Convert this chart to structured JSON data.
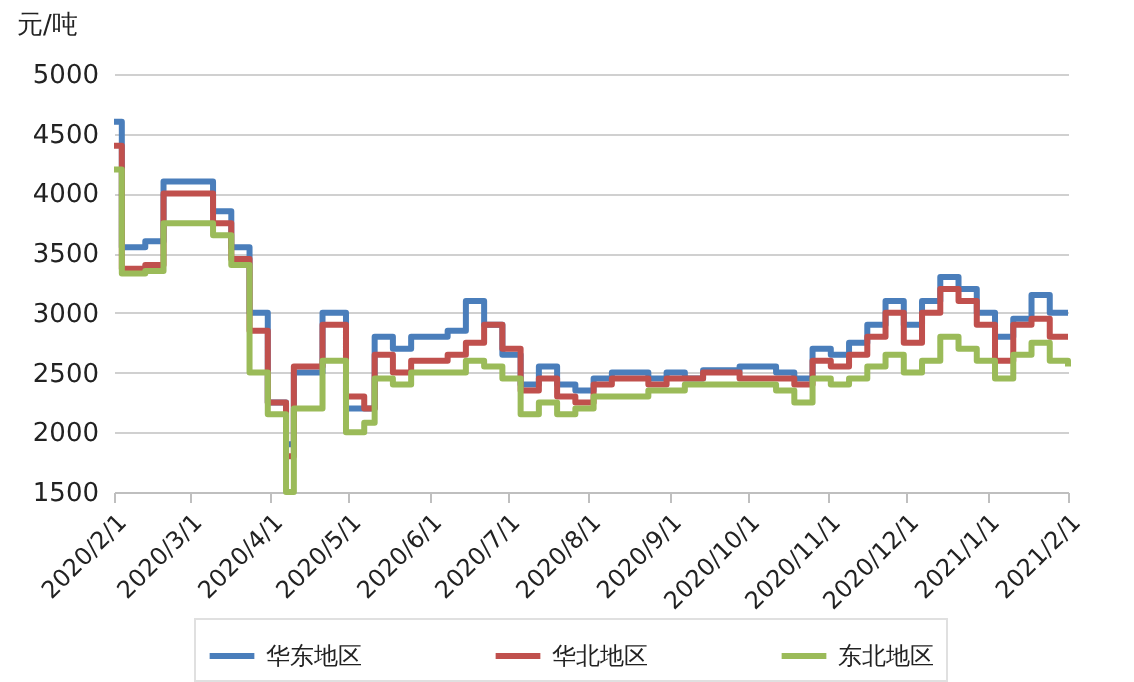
{
  "chart_data": {
    "type": "step",
    "ylabel": "元/吨",
    "x": [
      "2020-02-01",
      "2020-02-04",
      "2020-02-13",
      "2020-02-20",
      "2020-03-10",
      "2020-03-17",
      "2020-03-24",
      "2020-03-31",
      "2020-04-07",
      "2020-04-10",
      "2020-04-17",
      "2020-04-21",
      "2020-04-30",
      "2020-05-07",
      "2020-05-11",
      "2020-05-18",
      "2020-05-25",
      "2020-06-08",
      "2020-06-15",
      "2020-06-22",
      "2020-06-29",
      "2020-07-06",
      "2020-07-13",
      "2020-07-20",
      "2020-07-27",
      "2020-08-03",
      "2020-08-10",
      "2020-08-24",
      "2020-08-31",
      "2020-09-07",
      "2020-09-14",
      "2020-09-28",
      "2020-10-12",
      "2020-10-19",
      "2020-10-26",
      "2020-11-02",
      "2020-11-09",
      "2020-11-16",
      "2020-11-23",
      "2020-11-30",
      "2020-12-07",
      "2020-12-14",
      "2020-12-21",
      "2020-12-28",
      "2021-01-04",
      "2021-01-11",
      "2021-01-18",
      "2021-01-25",
      "2021-02-01"
    ],
    "series": [
      {
        "name": "华东地区",
        "color": "#4a7ebb",
        "values": [
          4600,
          3550,
          3600,
          4100,
          3850,
          3550,
          3000,
          2250,
          1900,
          2500,
          2500,
          3000,
          2200,
          2200,
          2800,
          2700,
          2800,
          2850,
          3100,
          2900,
          2650,
          2400,
          2550,
          2400,
          2350,
          2450,
          2500,
          2450,
          2500,
          2450,
          2520,
          2550,
          2500,
          2450,
          2700,
          2650,
          2750,
          2900,
          3100,
          2900,
          3100,
          3300,
          3200,
          3000,
          2800,
          2950,
          3150,
          3000,
          3000
        ]
      },
      {
        "name": "华北地区",
        "color": "#c0504d",
        "values": [
          4400,
          3370,
          3400,
          4000,
          3750,
          3450,
          2850,
          2250,
          1800,
          2550,
          2550,
          2900,
          2300,
          2200,
          2650,
          2500,
          2600,
          2650,
          2750,
          2900,
          2700,
          2350,
          2450,
          2300,
          2250,
          2400,
          2450,
          2400,
          2450,
          2450,
          2500,
          2450,
          2450,
          2400,
          2600,
          2550,
          2650,
          2800,
          3000,
          2750,
          3000,
          3200,
          3100,
          2900,
          2600,
          2900,
          2950,
          2800,
          2800
        ]
      },
      {
        "name": "东北地区",
        "color": "#9bbb59",
        "values": [
          4200,
          3330,
          3350,
          3750,
          3650,
          3400,
          2500,
          2150,
          1500,
          2200,
          2200,
          2600,
          2000,
          2080,
          2450,
          2400,
          2500,
          2500,
          2600,
          2550,
          2450,
          2150,
          2250,
          2150,
          2200,
          2300,
          2300,
          2350,
          2350,
          2400,
          2400,
          2400,
          2350,
          2250,
          2450,
          2400,
          2450,
          2550,
          2650,
          2500,
          2600,
          2800,
          2700,
          2600,
          2450,
          2650,
          2750,
          2600,
          2550
        ]
      }
    ],
    "xlim": [
      "2020-02-01",
      "2021-02-01"
    ],
    "xticks": [
      {
        "value": "2020-02-01",
        "label": "2020/2/1"
      },
      {
        "value": "2020-03-01",
        "label": "2020/3/1"
      },
      {
        "value": "2020-04-01",
        "label": "2020/4/1"
      },
      {
        "value": "2020-05-01",
        "label": "2020/5/1"
      },
      {
        "value": "2020-06-01",
        "label": "2020/6/1"
      },
      {
        "value": "2020-07-01",
        "label": "2020/7/1"
      },
      {
        "value": "2020-08-01",
        "label": "2020/8/1"
      },
      {
        "value": "2020-09-01",
        "label": "2020/9/1"
      },
      {
        "value": "2020-10-01",
        "label": "2020/10/1"
      },
      {
        "value": "2020-11-01",
        "label": "2020/11/1"
      },
      {
        "value": "2020-12-01",
        "label": "2020/12/1"
      },
      {
        "value": "2021-01-01",
        "label": "2021/1/1"
      },
      {
        "value": "2021-02-01",
        "label": "2021/2/1"
      }
    ],
    "ylim": [
      1500,
      5000
    ],
    "yticks": [
      1500,
      2000,
      2500,
      3000,
      3500,
      4000,
      4500,
      5000
    ],
    "grid": "y",
    "legend": "bottom",
    "marker": "none",
    "line_style": "solid"
  }
}
